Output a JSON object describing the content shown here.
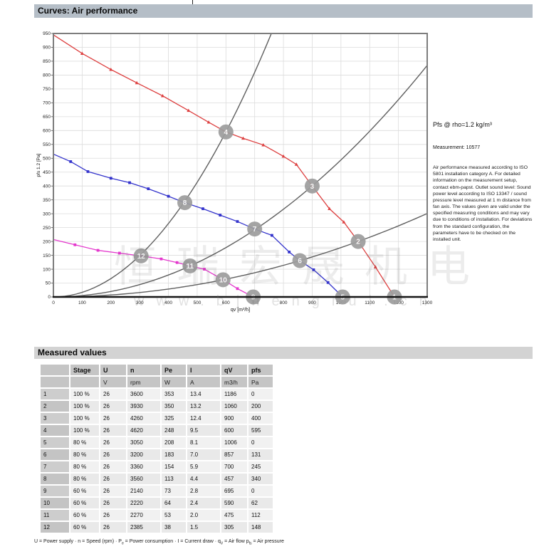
{
  "page": {
    "curves_title": "Curves: Air performance",
    "measured_title": "Measured values"
  },
  "notes": {
    "pfs_note": "Pfs @ rho=1.2 kg/m³",
    "measurement": "Measurement: 10577",
    "description": "Air performance measured according to ISO 5801 installation category A. For detailed information on the measurement setup, contact ebm-papst. Outlet sound level: Sound power level according to ISO 13347 / sound pressure level measured at 1 m distance from fan axis. The values given are valid under the specified measuring conditions and may vary due to conditions of installation. For deviations from the standard configuration, the parameters have to be checked on the installed unit."
  },
  "watermark": {
    "cjk": "恒瑞宏晟机电",
    "url": "www.bjhengrui.cn"
  },
  "chart_data": {
    "type": "line",
    "title": "",
    "xlabel": "qv [m³/h]",
    "ylabel": "pfs 1.2 [Pa]",
    "xlim": [
      0,
      1300
    ],
    "ylim": [
      0,
      950
    ],
    "x_tick_step": 100,
    "y_tick_step": 50,
    "grid": true,
    "legend_position": "none",
    "series": [
      {
        "name": "100% speed curve",
        "color": "#dd4040",
        "marker": "triangle",
        "points": [
          [
            0,
            945
          ],
          [
            100,
            878
          ],
          [
            200,
            820
          ],
          [
            290,
            772
          ],
          [
            380,
            725
          ],
          [
            470,
            672
          ],
          [
            540,
            630
          ],
          [
            600,
            595
          ],
          [
            660,
            572
          ],
          [
            730,
            548
          ],
          [
            800,
            507
          ],
          [
            845,
            478
          ],
          [
            900,
            400
          ],
          [
            960,
            318
          ],
          [
            1010,
            270
          ],
          [
            1060,
            200
          ],
          [
            1120,
            108
          ],
          [
            1186,
            0
          ]
        ]
      },
      {
        "name": "80% speed curve",
        "color": "#3434cc",
        "marker": "square",
        "points": [
          [
            0,
            515
          ],
          [
            60,
            488
          ],
          [
            120,
            452
          ],
          [
            200,
            428
          ],
          [
            265,
            412
          ],
          [
            330,
            390
          ],
          [
            400,
            363
          ],
          [
            457,
            340
          ],
          [
            520,
            318
          ],
          [
            580,
            295
          ],
          [
            640,
            272
          ],
          [
            700,
            245
          ],
          [
            760,
            222
          ],
          [
            820,
            162
          ],
          [
            857,
            131
          ],
          [
            905,
            98
          ],
          [
            955,
            52
          ],
          [
            1006,
            0
          ]
        ]
      },
      {
        "name": "60% speed curve",
        "color": "#e438cd",
        "marker": "square",
        "points": [
          [
            0,
            207
          ],
          [
            75,
            188
          ],
          [
            155,
            168
          ],
          [
            230,
            158
          ],
          [
            305,
            148
          ],
          [
            375,
            137
          ],
          [
            430,
            124
          ],
          [
            475,
            112
          ],
          [
            525,
            100
          ],
          [
            590,
            62
          ],
          [
            640,
            30
          ],
          [
            695,
            0
          ]
        ]
      }
    ],
    "load_curves": [
      {
        "name": "system curve through points 4/8/12",
        "k": 0.001653
      },
      {
        "name": "system curve through points 3/7/11",
        "k": 0.000494
      },
      {
        "name": "system curve through points 2/6/10",
        "k": 0.000178
      }
    ],
    "markers": [
      {
        "label": "1",
        "x": 1186,
        "y": 0
      },
      {
        "label": "2",
        "x": 1060,
        "y": 200
      },
      {
        "label": "3",
        "x": 900,
        "y": 400
      },
      {
        "label": "4",
        "x": 600,
        "y": 595
      },
      {
        "label": "5",
        "x": 1006,
        "y": 0
      },
      {
        "label": "6",
        "x": 857,
        "y": 131
      },
      {
        "label": "7",
        "x": 700,
        "y": 245
      },
      {
        "label": "8",
        "x": 457,
        "y": 340
      },
      {
        "label": "9",
        "x": 695,
        "y": 0
      },
      {
        "label": "10",
        "x": 590,
        "y": 62
      },
      {
        "label": "11",
        "x": 475,
        "y": 112
      },
      {
        "label": "12",
        "x": 305,
        "y": 148
      }
    ],
    "colors": {
      "grid": "#dcdcdc",
      "frame": "#7d7d7d",
      "axis": "#161616",
      "load_curve": "#5f5f5f",
      "marker_circle": "#9d9d9d",
      "marker_text": "#f7f7f7"
    }
  },
  "table": {
    "columns": [
      "",
      "Stage",
      "U",
      "n",
      "Pe",
      "I",
      "qV",
      "pfs"
    ],
    "units": [
      "",
      "",
      "V",
      "rpm",
      "W",
      "A",
      "m3/h",
      "Pa"
    ],
    "rows": [
      [
        "1",
        "100 %",
        "26",
        "3600",
        "353",
        "13.4",
        "1186",
        "0"
      ],
      [
        "2",
        "100 %",
        "26",
        "3930",
        "350",
        "13.2",
        "1060",
        "200"
      ],
      [
        "3",
        "100 %",
        "26",
        "4260",
        "325",
        "12.4",
        "900",
        "400"
      ],
      [
        "4",
        "100 %",
        "26",
        "4620",
        "248",
        "9.5",
        "600",
        "595"
      ],
      [
        "5",
        "80 %",
        "26",
        "3050",
        "208",
        "8.1",
        "1006",
        "0"
      ],
      [
        "6",
        "80 %",
        "26",
        "3200",
        "183",
        "7.0",
        "857",
        "131"
      ],
      [
        "7",
        "80 %",
        "26",
        "3360",
        "154",
        "5.9",
        "700",
        "245"
      ],
      [
        "8",
        "80 %",
        "26",
        "3560",
        "113",
        "4.4",
        "457",
        "340"
      ],
      [
        "9",
        "60 %",
        "26",
        "2140",
        "73",
        "2.8",
        "695",
        "0"
      ],
      [
        "10",
        "60 %",
        "26",
        "2220",
        "64",
        "2.4",
        "590",
        "62"
      ],
      [
        "11",
        "60 %",
        "26",
        "2270",
        "53",
        "2.0",
        "475",
        "112"
      ],
      [
        "12",
        "60 %",
        "26",
        "2385",
        "38",
        "1.5",
        "305",
        "148"
      ]
    ]
  },
  "footer": {
    "segments": [
      {
        "text": "U = Power supply · n = Speed (rpm) · P"
      },
      {
        "sub": "e"
      },
      {
        "text": " = Power consumption · I = Current draw · q"
      },
      {
        "sub": "V"
      },
      {
        "text": " = Air flow p"
      },
      {
        "sub": "fs"
      },
      {
        "text": " = Air pressure"
      }
    ]
  }
}
